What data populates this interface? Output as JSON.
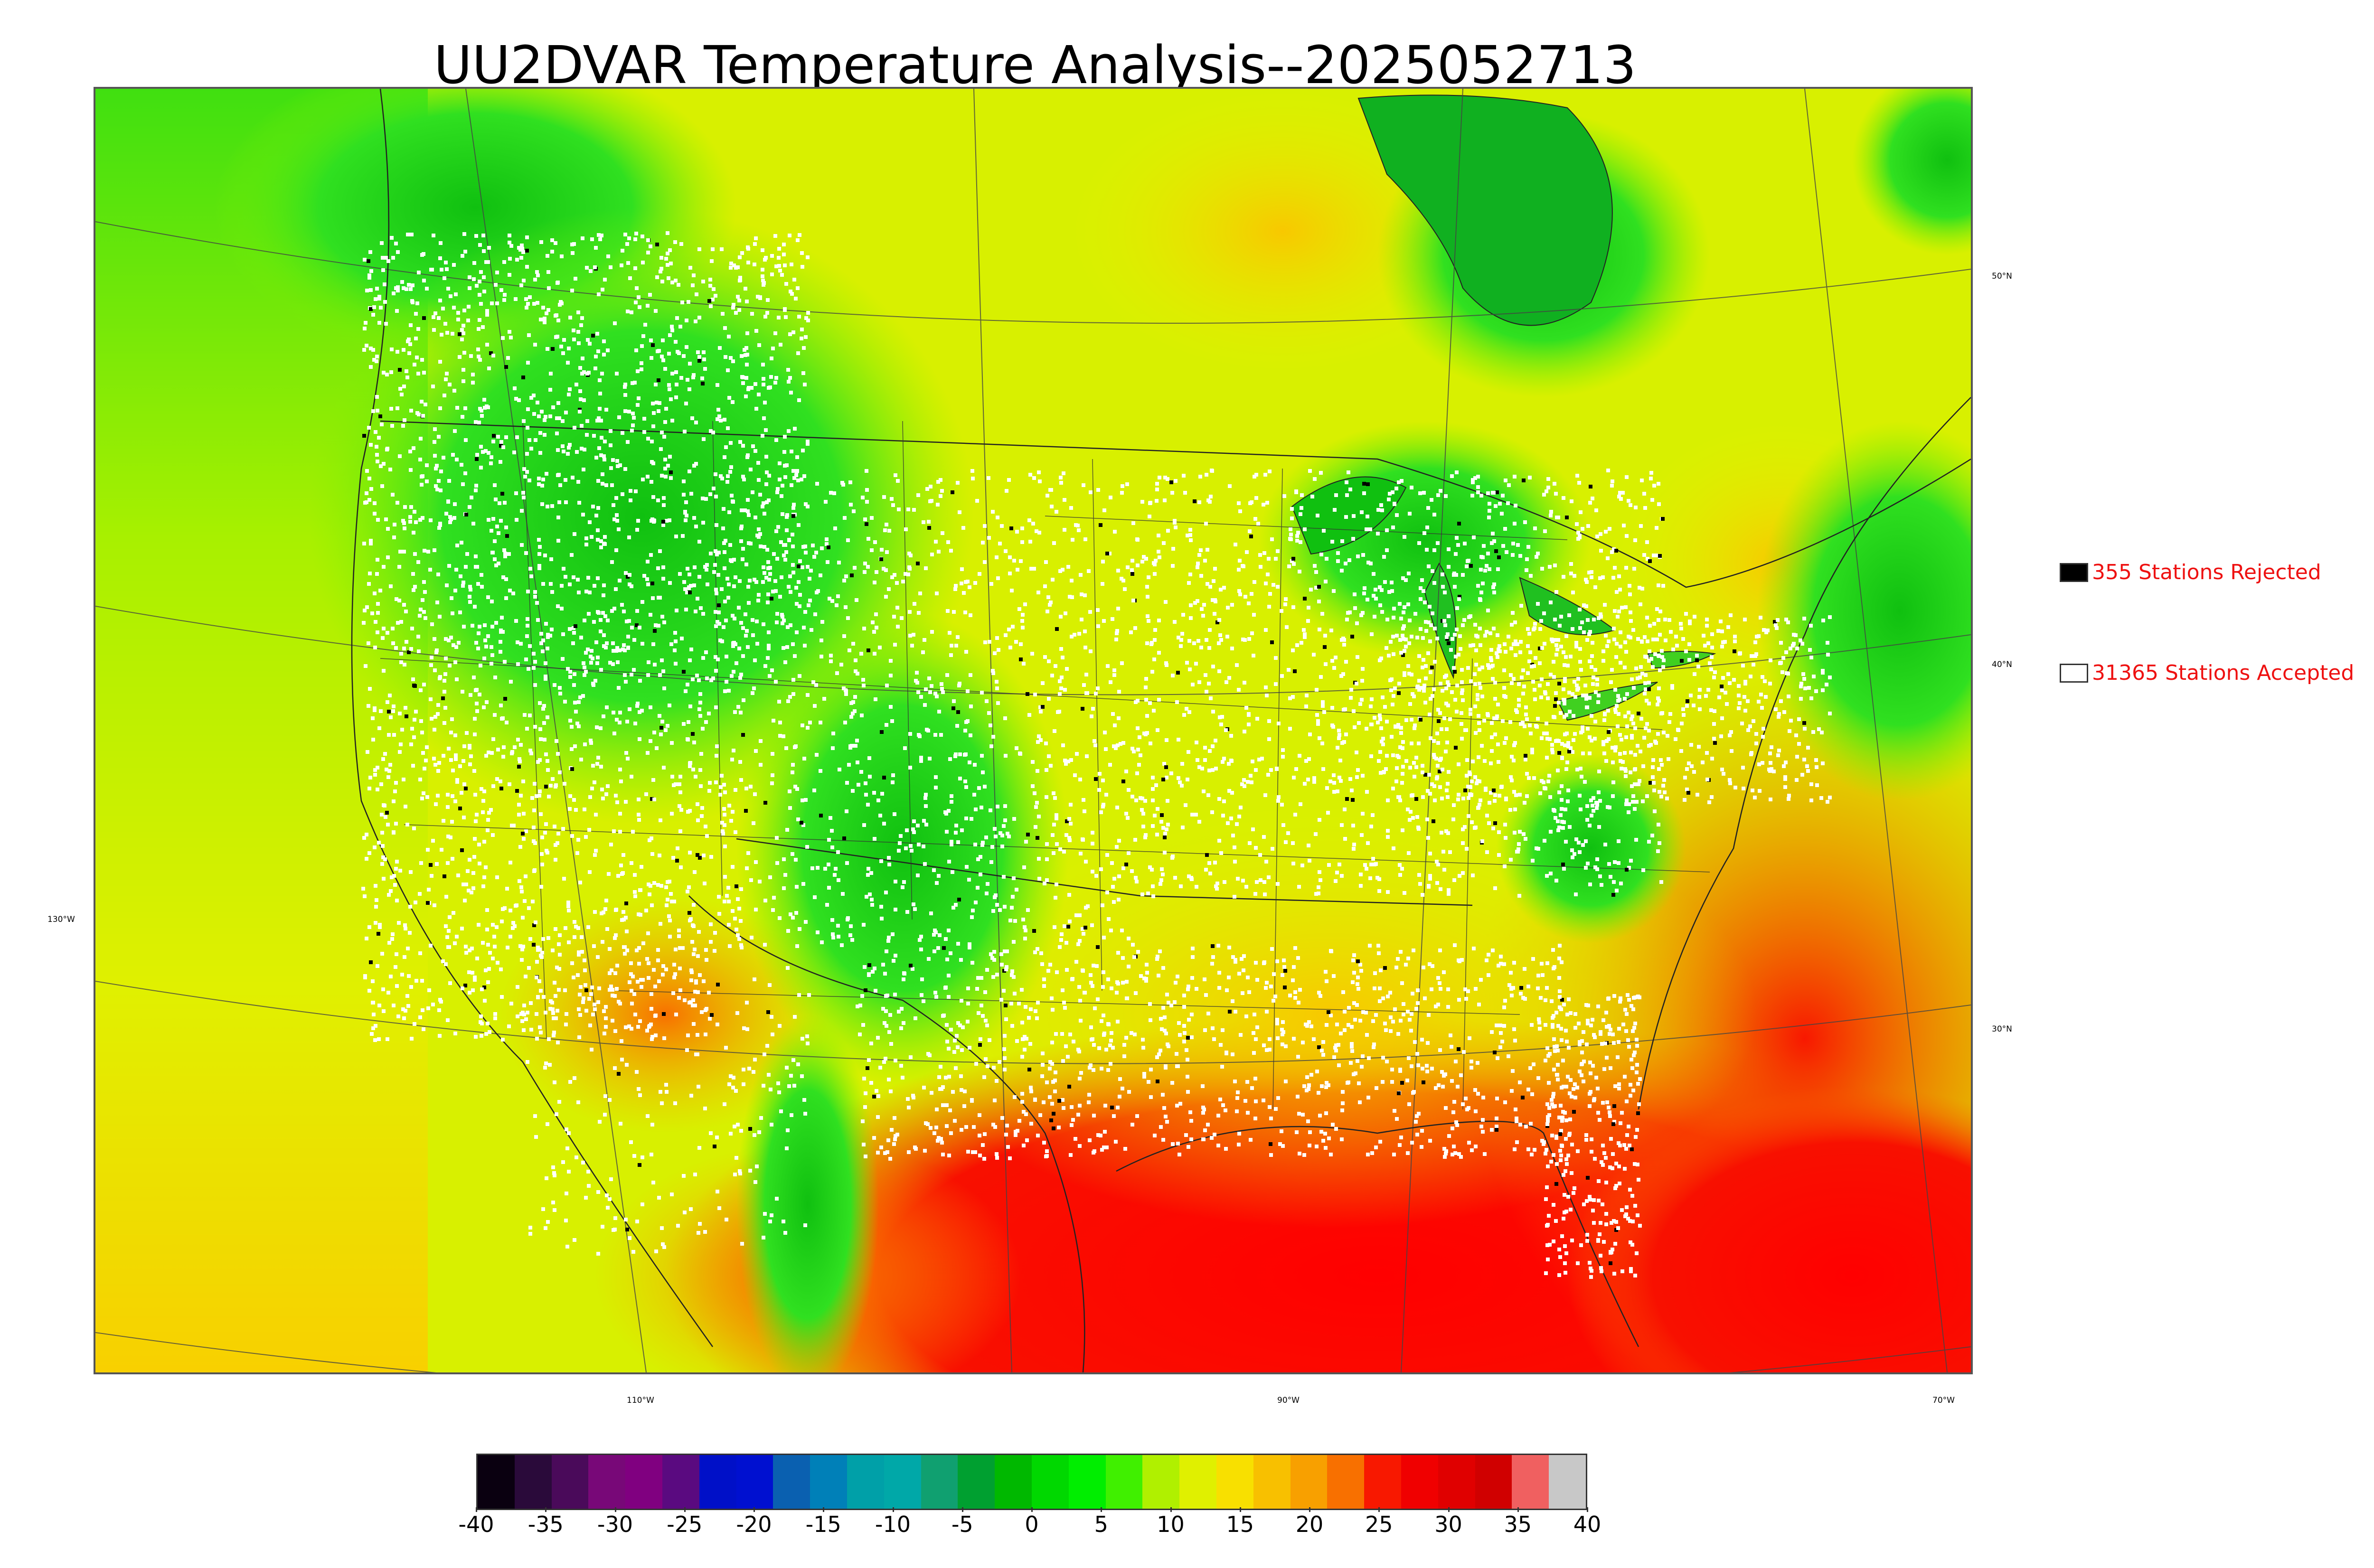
{
  "title": "UU2DVAR Temperature Analysis--2025052713",
  "legend": {
    "rejected_label": "355 Stations Rejected",
    "accepted_label": "31365 Stations Accepted",
    "text_color": "#ee1111"
  },
  "graticule": {
    "lat_labels": [
      "50°N",
      "40°N",
      "30°N"
    ],
    "lon_labels": [
      "130°W",
      "110°W",
      "90°W",
      "70°W"
    ]
  },
  "colorbar": {
    "ticks": [
      "-40",
      "-35",
      "-30",
      "-25",
      "-20",
      "-15",
      "-10",
      "-5",
      "0",
      "5",
      "10",
      "15",
      "20",
      "25",
      "30",
      "35",
      "40"
    ],
    "range": [
      -40,
      40
    ],
    "colors": [
      "#0a0010",
      "#2a0a3a",
      "#4a0a5a",
      "#780878",
      "#800080",
      "#5a0a80",
      "#0010c8",
      "#0010d0",
      "#0a60b0",
      "#0080b8",
      "#00a0a8",
      "#00a8a8",
      "#10a070",
      "#00a030",
      "#00b800",
      "#00d800",
      "#00ee00",
      "#40f000",
      "#b0f000",
      "#e0f000",
      "#f8e000",
      "#f8c000",
      "#f8a000",
      "#f87000",
      "#f81800",
      "#f00000",
      "#e00000",
      "#d00000",
      "#f06060",
      "#c8c8c8"
    ]
  }
}
